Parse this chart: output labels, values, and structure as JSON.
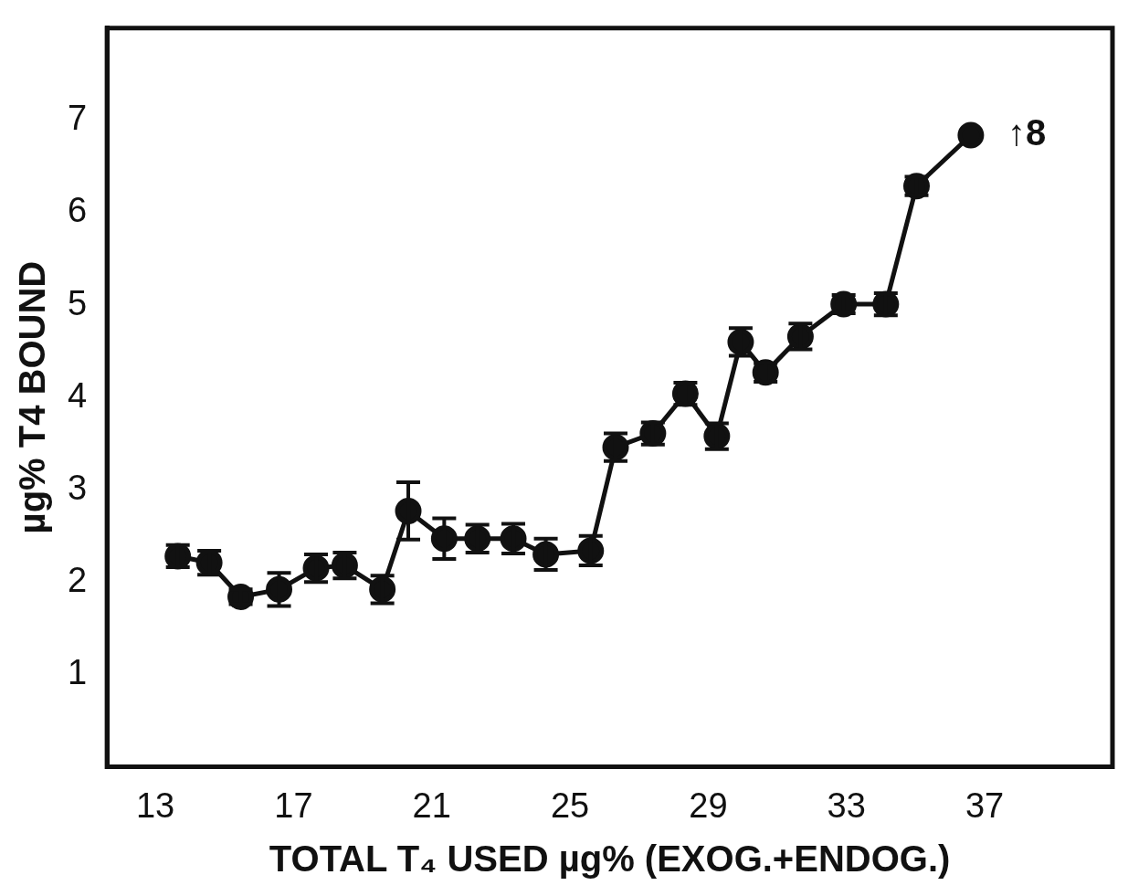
{
  "chart_data": {
    "type": "line",
    "xlabel": "TOTAL T₄ USED µg% (EXOG.+ENDOG.)",
    "ylabel": "µg% T4 BOUND",
    "x": [
      13.65,
      14.56,
      15.47,
      16.58,
      17.65,
      18.48,
      19.57,
      20.32,
      21.36,
      22.32,
      23.36,
      24.3,
      25.6,
      26.32,
      27.4,
      28.34,
      29.25,
      29.94,
      30.66,
      31.67,
      32.92,
      34.14,
      35.03,
      36.6
    ],
    "series": [
      {
        "color": "#111111",
        "values": [
          2.28,
          2.21,
          1.84,
          1.92,
          2.15,
          2.18,
          1.92,
          2.77,
          2.47,
          2.47,
          2.47,
          2.3,
          2.34,
          3.46,
          3.61,
          4.04,
          3.58,
          4.6,
          4.27,
          4.66,
          5.01,
          5.01,
          6.29,
          6.84
        ],
        "errors": [
          0.12,
          0.13,
          0.08,
          0.18,
          0.15,
          0.14,
          0.15,
          0.31,
          0.22,
          0.15,
          0.16,
          0.17,
          0.16,
          0.15,
          0.12,
          0.12,
          0.14,
          0.15,
          0.1,
          0.14,
          0.1,
          0.12,
          0.1,
          null
        ]
      }
    ],
    "xlim": [
      11.6,
      40.7
    ],
    "xticks": [
      13,
      17,
      21,
      25,
      29,
      33,
      37
    ],
    "ylim": [
      0,
      8
    ],
    "yticks": [
      1,
      2,
      3,
      4,
      5,
      6,
      7
    ],
    "annotations": [
      "↑8"
    ],
    "grid": false,
    "legend": false,
    "marker": "circle",
    "line_style": "solid"
  }
}
